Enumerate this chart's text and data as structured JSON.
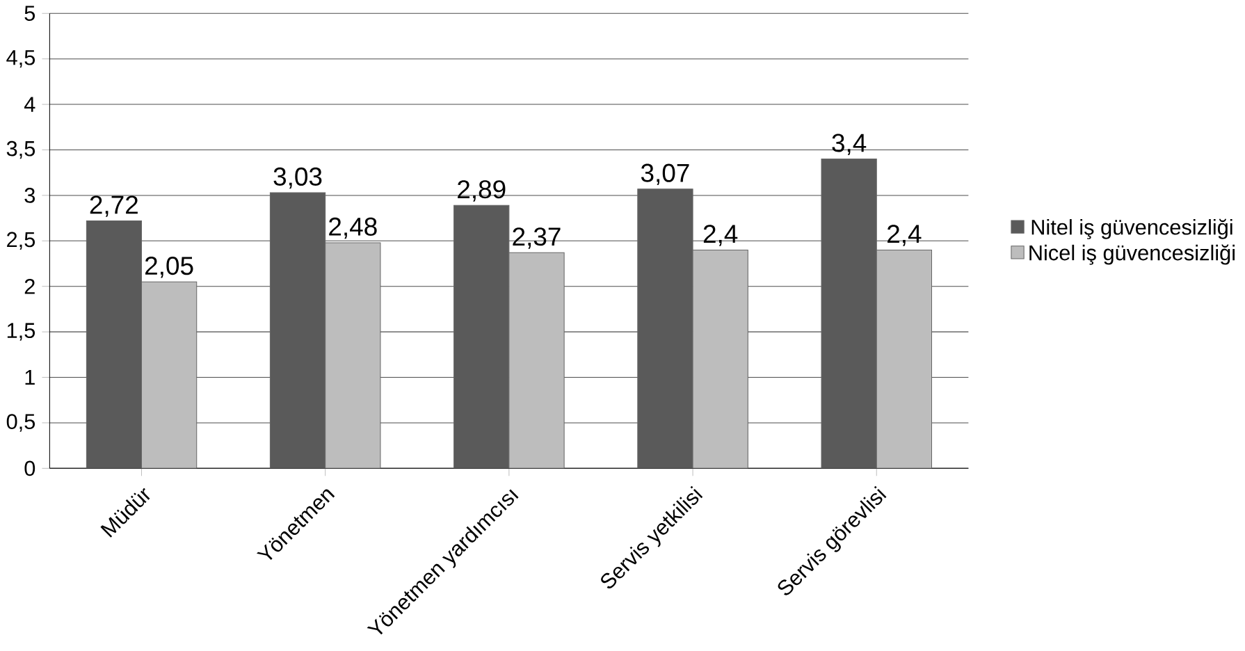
{
  "chart_data": {
    "type": "bar",
    "categories": [
      "Müdür",
      "Yönetmen",
      "Yönetmen yardımcısı",
      "Servis yetkilisi",
      "Servis görevlisi"
    ],
    "series": [
      {
        "name": "Nitel iş güvencesizliği",
        "color": "#5a5a5a",
        "values": [
          2.72,
          3.03,
          2.89,
          3.07,
          3.4
        ],
        "value_labels": [
          "2,72",
          "3,03",
          "2,89",
          "3,07",
          "3,4"
        ]
      },
      {
        "name": "Nicel iş güvencesizliği",
        "color": "#bdbdbd",
        "values": [
          2.05,
          2.48,
          2.37,
          2.4,
          2.4
        ],
        "value_labels": [
          "2,05",
          "2,48",
          "2,37",
          "2,4",
          "2,4"
        ]
      }
    ],
    "ylim": [
      0,
      5
    ],
    "yticks": [
      0,
      {
        "value": 0.5,
        "label": "0,5"
      },
      1,
      {
        "value": 1.5,
        "label": "1,5"
      },
      2,
      {
        "value": 2.5,
        "label": "2,5"
      },
      3,
      {
        "value": 3.5,
        "label": "3,5"
      },
      4,
      {
        "value": 4.5,
        "label": "4,5"
      },
      5
    ],
    "grid": "y",
    "legend": "right"
  }
}
